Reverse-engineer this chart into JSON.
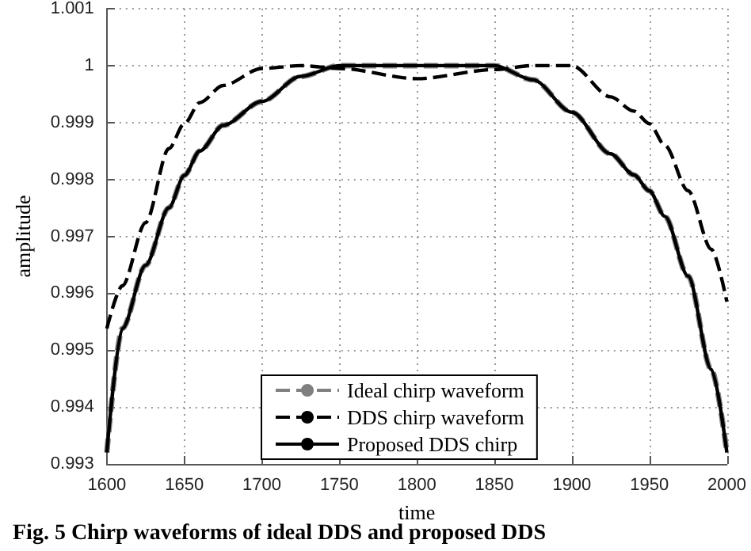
{
  "chart_data": {
    "type": "line",
    "xlabel": "time",
    "ylabel": "amplitude",
    "annotations": [
      "Fig. 5 Chirp waveforms of ideal DDS and proposed DDS"
    ],
    "xlim": [
      1600,
      2000
    ],
    "xticks": [
      1600,
      1650,
      1700,
      1750,
      1800,
      1850,
      1900,
      1950,
      2000
    ],
    "ylim": [
      0.993,
      1.001
    ],
    "yticks": [
      0.993,
      0.994,
      0.995,
      0.996,
      0.997,
      0.998,
      0.999,
      1,
      1.001
    ],
    "grid": true,
    "legend": "bottom",
    "marker": "none",
    "x": [
      1600,
      1610,
      1625,
      1640,
      1650,
      1660,
      1675,
      1700,
      1725,
      1750,
      1800,
      1850,
      1875,
      1900,
      1925,
      1940,
      1950,
      1960,
      1975,
      1990,
      2000
    ],
    "series": [
      {
        "name": "Ideal chirp waveform",
        "color": "#808080",
        "line_style": "dashed",
        "values": [
          0.9932,
          0.99538,
          0.99649,
          0.9975,
          0.99807,
          0.9985,
          0.99895,
          0.99937,
          0.99981,
          1.0,
          1.0,
          1.0,
          0.99975,
          0.99918,
          0.99845,
          0.99808,
          0.9978,
          0.99735,
          0.9963,
          0.99466,
          0.9932
        ]
      },
      {
        "name": "DDS chirp waveform",
        "color": "#000000",
        "line_style": "dashed",
        "values": [
          0.99538,
          0.99613,
          0.99724,
          0.99854,
          0.99898,
          0.99935,
          0.99965,
          0.99995,
          1.0,
          0.99995,
          0.99977,
          0.99993,
          1.0,
          1.0,
          0.99945,
          0.9992,
          0.99898,
          0.9986,
          0.9978,
          0.99677,
          0.99585
        ]
      },
      {
        "name": "Proposed DDS chirp",
        "color": "#000000",
        "line_style": "solid",
        "values": [
          0.9932,
          0.99538,
          0.99649,
          0.9975,
          0.99807,
          0.9985,
          0.99895,
          0.99937,
          0.99981,
          1.0,
          1.0,
          1.0,
          0.99975,
          0.99918,
          0.99845,
          0.99808,
          0.9978,
          0.99735,
          0.9963,
          0.99466,
          0.9932
        ]
      }
    ]
  }
}
